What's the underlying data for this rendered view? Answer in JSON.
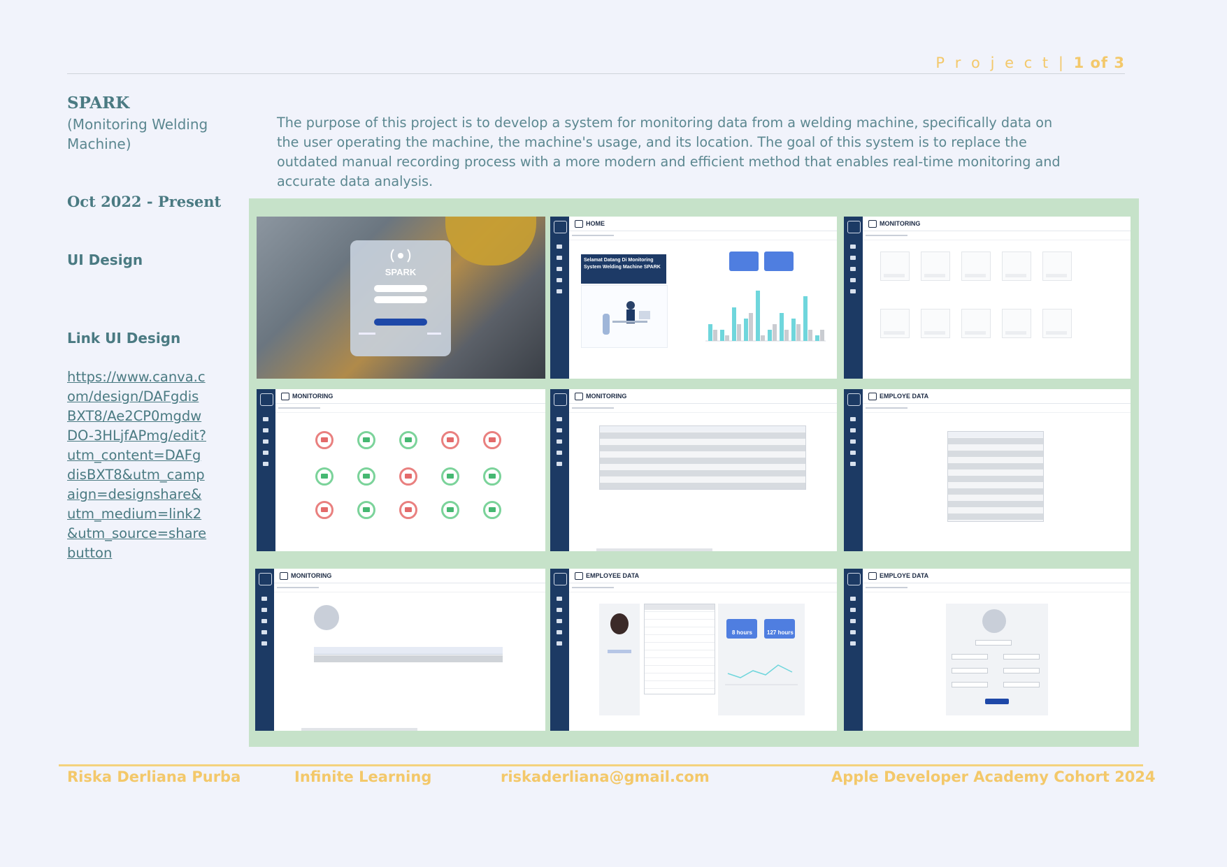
{
  "header": {
    "project_label": "P r o j e c t  |",
    "page_indicator": "1 of 3"
  },
  "project": {
    "title": "SPARK",
    "subtitle": "(Monitoring Welding Machine)",
    "description": "The purpose of this project is to develop a system for monitoring data from a welding machine, specifically data on the user operating the machine, the machine's usage, and its location. The goal of this system is to replace the outdated manual recording process with a more modern and efficient method that enables real-time monitoring and accurate data analysis.",
    "date": "Oct 2022 - Present",
    "role": "UI Design",
    "link_heading": "Link UI Design",
    "link_url": "https://www.canva.com/design/DAFgdisBXT8/Ae2CP0mgdwDO-3HLjfAPmg/edit?utm_content=DAFgdisBXT8&utm_campaign=designshare&utm_medium=link2&utm_source=sharebutton"
  },
  "screens": {
    "home_title": "HOME",
    "monitoring_title": "MONITORING",
    "employe_data_title": "EMPLOYE DATA",
    "employee_data_title": "EMPLOYEE DATA",
    "welcome_text": "Selamat Datang Di Monitoring System Welding Machine SPARK",
    "login_brand": "SPARK",
    "card_hours_a": "8 hours",
    "card_hours_b": "127 hours"
  },
  "chart_data": {
    "type": "bar",
    "series": [
      {
        "values": [
          3,
          2,
          6,
          4,
          9,
          2,
          5,
          4,
          8,
          1
        ]
      },
      {
        "values": [
          2,
          1,
          3,
          5,
          1,
          3,
          2,
          3,
          2,
          2
        ]
      }
    ],
    "colors": [
      "#6fd6dc",
      "#c9ccd1"
    ]
  },
  "footer": {
    "name": "Riska Derliana Purba",
    "org": "Infinite Learning",
    "email": "riskaderliana@gmail.com",
    "program": "Apple Developer Academy Cohort 2024"
  },
  "colors": {
    "background": "#f1f3fb",
    "text": "#4a7a82",
    "accent": "#f3c86a",
    "gallery_bg": "#c6e2c9",
    "sidebar": "#1c3a64"
  }
}
